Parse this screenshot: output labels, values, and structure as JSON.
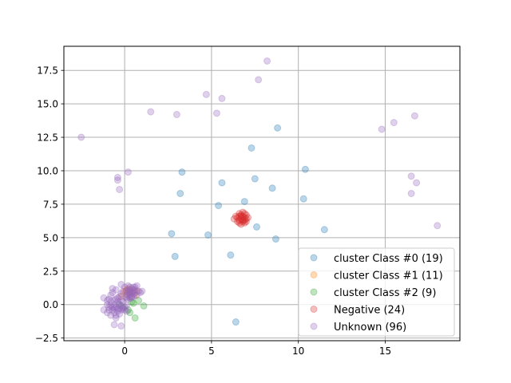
{
  "chart_data": {
    "type": "scatter",
    "title": "",
    "xlabel": "",
    "ylabel": "",
    "xlim": [
      -3.5,
      19.3
    ],
    "ylim": [
      -2.7,
      19.3
    ],
    "xticks": [
      0,
      5,
      10,
      15
    ],
    "xtick_labels": [
      "0",
      "5",
      "10",
      "15"
    ],
    "yticks": [
      -2.5,
      0.0,
      2.5,
      5.0,
      7.5,
      10.0,
      12.5,
      15.0,
      17.5
    ],
    "ytick_labels": [
      "−2.5",
      "0.0",
      "2.5",
      "5.0",
      "7.5",
      "10.0",
      "12.5",
      "15.0",
      "17.5"
    ],
    "grid": true,
    "legend_position": "lower-right",
    "series": [
      {
        "name": "cluster Class #0 (19)",
        "color": "#1f77b4",
        "points": [
          [
            3.3,
            9.9
          ],
          [
            3.2,
            8.3
          ],
          [
            5.6,
            9.1
          ],
          [
            5.4,
            7.4
          ],
          [
            6.9,
            7.7
          ],
          [
            7.3,
            11.7
          ],
          [
            7.5,
            9.4
          ],
          [
            8.5,
            8.7
          ],
          [
            8.8,
            13.2
          ],
          [
            10.4,
            10.1
          ],
          [
            10.3,
            7.9
          ],
          [
            7.6,
            5.8
          ],
          [
            8.7,
            4.9
          ],
          [
            11.5,
            5.6
          ],
          [
            4.8,
            5.2
          ],
          [
            2.7,
            5.3
          ],
          [
            2.9,
            3.6
          ],
          [
            6.1,
            3.7
          ],
          [
            6.4,
            -1.3
          ]
        ]
      },
      {
        "name": "cluster Class #1 (11)",
        "color": "#ff7f0e",
        "points": [
          [
            0.1,
            0.8
          ],
          [
            0.3,
            1.0
          ],
          [
            0.5,
            1.1
          ],
          [
            -0.2,
            0.6
          ],
          [
            0.4,
            0.9
          ],
          [
            0.2,
            1.2
          ],
          [
            0.6,
            0.7
          ],
          [
            0.0,
            1.0
          ],
          [
            0.7,
            1.0
          ],
          [
            0.3,
            0.6
          ],
          [
            0.1,
            1.1
          ]
        ]
      },
      {
        "name": "cluster Class #2 (9)",
        "color": "#2ca02c",
        "points": [
          [
            1.1,
            -0.1
          ],
          [
            0.6,
            -1.0
          ],
          [
            0.4,
            0.2
          ],
          [
            0.2,
            -0.4
          ],
          [
            -0.1,
            -0.2
          ],
          [
            0.5,
            0.1
          ],
          [
            0.3,
            -0.6
          ],
          [
            -0.3,
            0.0
          ],
          [
            0.8,
            0.3
          ]
        ]
      },
      {
        "name": "Negative (24)",
        "color": "#d62728",
        "points": [
          [
            6.3,
            6.4
          ],
          [
            6.5,
            6.5
          ],
          [
            6.6,
            6.3
          ],
          [
            6.7,
            6.6
          ],
          [
            6.8,
            6.2
          ],
          [
            6.9,
            6.5
          ],
          [
            7.0,
            6.4
          ],
          [
            6.6,
            6.8
          ],
          [
            6.8,
            6.9
          ],
          [
            7.0,
            6.7
          ],
          [
            6.7,
            6.0
          ],
          [
            6.9,
            6.1
          ],
          [
            6.5,
            6.2
          ],
          [
            6.8,
            6.6
          ],
          [
            7.0,
            6.2
          ],
          [
            6.6,
            6.6
          ],
          [
            6.9,
            6.8
          ],
          [
            6.7,
            6.4
          ],
          [
            6.8,
            6.3
          ],
          [
            6.4,
            6.6
          ],
          [
            6.6,
            6.1
          ],
          [
            7.1,
            6.5
          ],
          [
            6.9,
            6.3
          ],
          [
            6.7,
            6.7
          ]
        ]
      },
      {
        "name": "Unknown (96)",
        "color": "#9467bd",
        "points": [
          [
            -2.5,
            12.5
          ],
          [
            1.5,
            14.4
          ],
          [
            3.0,
            14.2
          ],
          [
            4.7,
            15.7
          ],
          [
            5.6,
            15.4
          ],
          [
            5.3,
            14.3
          ],
          [
            7.7,
            16.8
          ],
          [
            8.2,
            18.2
          ],
          [
            14.8,
            13.1
          ],
          [
            15.5,
            13.6
          ],
          [
            16.7,
            14.1
          ],
          [
            16.5,
            9.6
          ],
          [
            16.8,
            9.1
          ],
          [
            16.5,
            8.3
          ],
          [
            18.0,
            5.9
          ],
          [
            -0.4,
            9.5
          ],
          [
            -0.4,
            9.3
          ],
          [
            -0.3,
            8.6
          ],
          [
            0.2,
            9.9
          ],
          [
            -1.2,
            0.5
          ],
          [
            -1.0,
            0.0
          ],
          [
            -0.9,
            -0.4
          ],
          [
            -0.8,
            -0.8
          ],
          [
            -0.7,
            0.9
          ],
          [
            -0.7,
            -0.2
          ],
          [
            -0.6,
            0.3
          ],
          [
            -0.6,
            -0.6
          ],
          [
            -0.5,
            1.1
          ],
          [
            -0.5,
            -1.0
          ],
          [
            -0.4,
            0.5
          ],
          [
            -0.4,
            -0.3
          ],
          [
            -0.3,
            0.0
          ],
          [
            -0.3,
            -0.7
          ],
          [
            -0.2,
            0.8
          ],
          [
            -0.2,
            -0.4
          ],
          [
            -0.1,
            1.0
          ],
          [
            -0.1,
            0.2
          ],
          [
            0.0,
            -0.2
          ],
          [
            0.0,
            1.3
          ],
          [
            0.1,
            0.5
          ],
          [
            0.1,
            -0.5
          ],
          [
            0.2,
            1.1
          ],
          [
            0.2,
            0.7
          ],
          [
            0.3,
            1.3
          ],
          [
            0.3,
            0.9
          ],
          [
            0.4,
            0.6
          ],
          [
            0.4,
            1.2
          ],
          [
            0.5,
            0.8
          ],
          [
            0.5,
            1.0
          ],
          [
            0.6,
            0.9
          ],
          [
            0.6,
            1.3
          ],
          [
            0.7,
            0.7
          ],
          [
            0.7,
            1.4
          ],
          [
            0.8,
            1.0
          ],
          [
            0.9,
            0.9
          ],
          [
            1.0,
            1.0
          ],
          [
            0.2,
            0.4
          ],
          [
            0.3,
            0.8
          ],
          [
            0.1,
            1.0
          ],
          [
            0.4,
            0.9
          ],
          [
            -0.8,
            -0.1
          ],
          [
            -0.7,
            -0.4
          ],
          [
            -0.6,
            -0.3
          ],
          [
            -0.5,
            -0.2
          ],
          [
            -0.4,
            -0.5
          ],
          [
            -0.3,
            -0.3
          ],
          [
            -0.2,
            -0.1
          ],
          [
            -0.1,
            -0.3
          ],
          [
            0.0,
            -0.4
          ],
          [
            0.1,
            -0.1
          ],
          [
            -0.9,
            0.4
          ],
          [
            -0.8,
            0.7
          ],
          [
            -0.7,
            1.2
          ],
          [
            -0.2,
            1.5
          ],
          [
            -0.6,
            -1.5
          ],
          [
            -0.2,
            -1.6
          ],
          [
            -1.2,
            -0.4
          ],
          [
            -1.0,
            -0.6
          ],
          [
            -0.5,
            -0.8
          ],
          [
            0.2,
            0.9
          ],
          [
            0.3,
            1.1
          ],
          [
            0.5,
            0.6
          ],
          [
            0.6,
            1.1
          ],
          [
            0.1,
            0.6
          ],
          [
            0.2,
            1.4
          ],
          [
            0.4,
            0.5
          ],
          [
            0.5,
            1.3
          ],
          [
            0.3,
            0.5
          ],
          [
            -0.4,
            0.2
          ],
          [
            -0.3,
            0.6
          ],
          [
            -0.2,
            0.3
          ],
          [
            -0.6,
            0.0
          ],
          [
            -0.5,
            0.4
          ],
          [
            -0.9,
            -0.2
          ],
          [
            -0.8,
            0.2
          ],
          [
            -1.0,
            0.3
          ]
        ]
      }
    ]
  }
}
